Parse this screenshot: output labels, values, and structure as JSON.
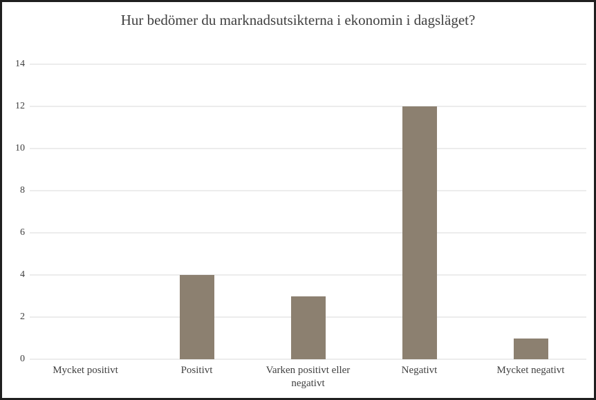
{
  "frame": {
    "border_color": "#1f1f1f",
    "background": "#ffffff"
  },
  "chart_data": {
    "type": "bar",
    "title": "Hur bedömer du marknadsutsikterna i ekonomin i dagsläget?",
    "categories": [
      "Mycket positivt",
      "Positivt",
      "Varken positivt eller negativt",
      "Negativt",
      "Mycket negativt"
    ],
    "values": [
      0,
      4,
      3,
      12,
      1
    ],
    "xlabel": "",
    "ylabel": "",
    "ylim": [
      0,
      14
    ],
    "ytick_step": 2,
    "ytick_labels": [
      "0",
      "2",
      "4",
      "6",
      "8",
      "10",
      "12",
      "14"
    ],
    "grid": "horizontal",
    "legend": "none",
    "bar_color": "#8C8070",
    "gridline_color": "#D9D9D9",
    "text_color": "#404040"
  }
}
